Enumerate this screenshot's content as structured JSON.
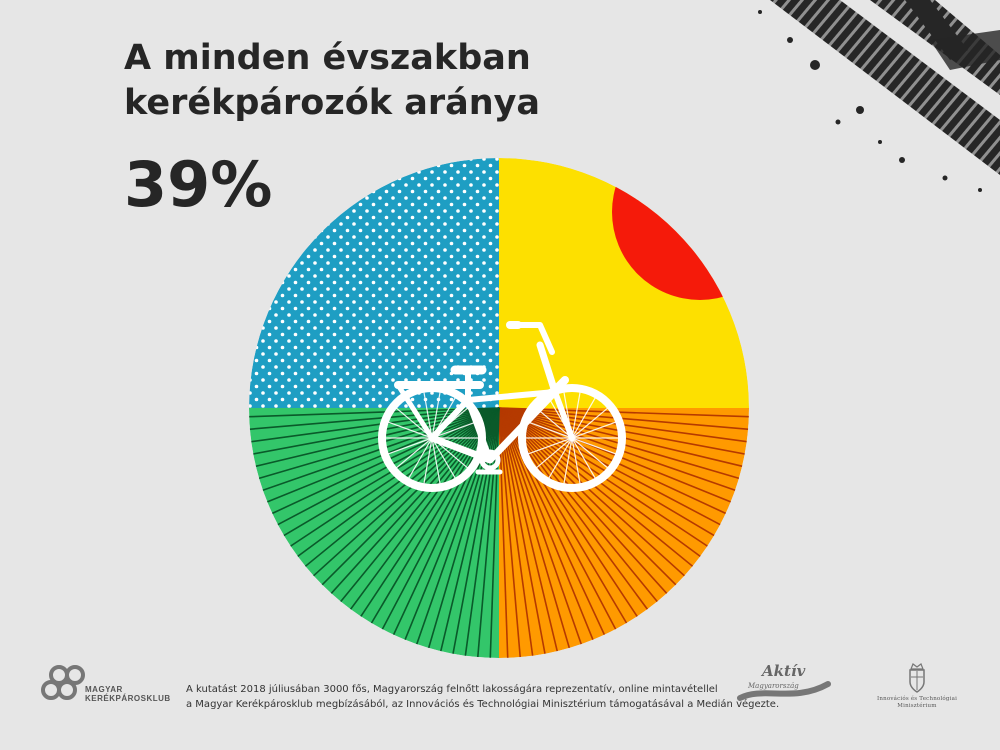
{
  "title_lines": [
    "A minden évszakban",
    "kerékpározók aránya"
  ],
  "percent": "39%",
  "colors": {
    "background": "#e6e6e6",
    "text": "#262626",
    "winter": "#1e9ec3",
    "summer": "#fde000",
    "sun": "#f51a0a",
    "autumn": "#ff9a00",
    "spring": "#33c66a"
  },
  "footer": {
    "line1": "A kutatást 2018 júliusában 3000 fős, Magyarország felnőtt lakosságára reprezentatív, online mintavétellel",
    "line2": "a Magyar Kerékpárosklub megbízásából, az Innovációs és Technológiai Minisztérium támogatásával a Medián végezte."
  },
  "logos": {
    "mk_line1": "MAGYAR",
    "mk_line2": "KERÉKPÁROSKLUB",
    "aktiv_word": "Aktív",
    "aktiv_sub": "Magyarország",
    "itm_line1": "Innovációs és Technológiai",
    "itm_line2": "Minisztérium"
  },
  "icons": [
    "bicycle-icon",
    "tire-track-icon",
    "mk-logo-icon",
    "coat-of-arms-icon"
  ]
}
